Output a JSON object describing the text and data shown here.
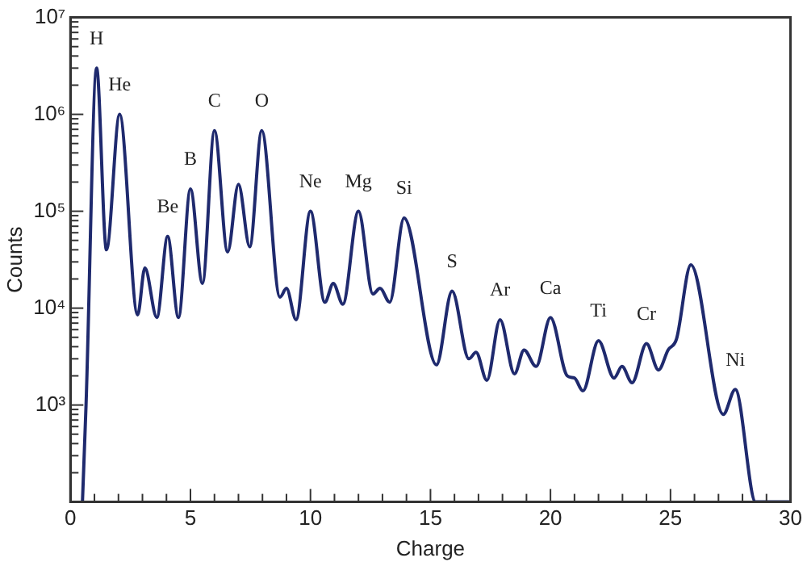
{
  "chart_data": {
    "type": "line",
    "xlabel": "Charge",
    "ylabel": "Counts",
    "log": "y",
    "grid": false,
    "legend": false,
    "marker": "none",
    "line_style": "solid",
    "xlim": [
      0,
      30
    ],
    "xticks": [
      0,
      {
        "value": 1,
        "label": null
      },
      {
        "value": 2,
        "label": null
      },
      {
        "value": 3,
        "label": null
      },
      {
        "value": 4,
        "label": null
      },
      5,
      {
        "value": 6,
        "label": null
      },
      {
        "value": 7,
        "label": null
      },
      {
        "value": 8,
        "label": null
      },
      {
        "value": 9,
        "label": null
      },
      10,
      {
        "value": 11,
        "label": null
      },
      {
        "value": 12,
        "label": null
      },
      {
        "value": 13,
        "label": null
      },
      {
        "value": 14,
        "label": null
      },
      15,
      {
        "value": 16,
        "label": null
      },
      {
        "value": 17,
        "label": null
      },
      {
        "value": 18,
        "label": null
      },
      {
        "value": 19,
        "label": null
      },
      20,
      {
        "value": 21,
        "label": null
      },
      {
        "value": 22,
        "label": null
      },
      {
        "value": 23,
        "label": null
      },
      {
        "value": 24,
        "label": null
      },
      25,
      {
        "value": 26,
        "label": null
      },
      {
        "value": 27,
        "label": null
      },
      {
        "value": 28,
        "label": null
      },
      {
        "value": 29,
        "label": null
      },
      30
    ],
    "ylim": [
      100,
      10000000
    ],
    "yticks": [
      {
        "value": 200,
        "label": null
      },
      {
        "value": 300,
        "label": null
      },
      {
        "value": 400,
        "label": null
      },
      {
        "value": 500,
        "label": null
      },
      {
        "value": 600,
        "label": null
      },
      {
        "value": 700,
        "label": null
      },
      {
        "value": 800,
        "label": null
      },
      {
        "value": 900,
        "label": null
      },
      {
        "value": 1000,
        "label": "10³"
      },
      {
        "value": 2000,
        "label": null
      },
      {
        "value": 3000,
        "label": null
      },
      {
        "value": 4000,
        "label": null
      },
      {
        "value": 5000,
        "label": null
      },
      {
        "value": 6000,
        "label": null
      },
      {
        "value": 7000,
        "label": null
      },
      {
        "value": 8000,
        "label": null
      },
      {
        "value": 9000,
        "label": null
      },
      {
        "value": 10000,
        "label": "10⁴"
      },
      {
        "value": 20000,
        "label": null
      },
      {
        "value": 30000,
        "label": null
      },
      {
        "value": 40000,
        "label": null
      },
      {
        "value": 50000,
        "label": null
      },
      {
        "value": 60000,
        "label": null
      },
      {
        "value": 70000,
        "label": null
      },
      {
        "value": 80000,
        "label": null
      },
      {
        "value": 90000,
        "label": null
      },
      {
        "value": 100000,
        "label": "10⁵"
      },
      {
        "value": 200000,
        "label": null
      },
      {
        "value": 300000,
        "label": null
      },
      {
        "value": 400000,
        "label": null
      },
      {
        "value": 500000,
        "label": null
      },
      {
        "value": 600000,
        "label": null
      },
      {
        "value": 700000,
        "label": null
      },
      {
        "value": 800000,
        "label": null
      },
      {
        "value": 900000,
        "label": null
      },
      {
        "value": 1000000,
        "label": "10⁶"
      },
      {
        "value": 2000000,
        "label": null
      },
      {
        "value": 3000000,
        "label": null
      },
      {
        "value": 4000000,
        "label": null
      },
      {
        "value": 5000000,
        "label": null
      },
      {
        "value": 6000000,
        "label": null
      },
      {
        "value": 7000000,
        "label": null
      },
      {
        "value": 8000000,
        "label": null
      },
      {
        "value": 9000000,
        "label": null
      },
      {
        "value": 10000000,
        "label": "10⁷"
      }
    ],
    "series": [
      {
        "color": "#1f2a6e",
        "x": [
          0.5,
          0.65,
          1.09,
          1.5,
          2.05,
          2.8,
          3.1,
          3.6,
          4.05,
          4.5,
          5.0,
          5.5,
          6.0,
          6.55,
          7.0,
          7.47,
          7.97,
          8.73,
          9.0,
          9.4,
          10.0,
          10.6,
          10.95,
          11.35,
          12.0,
          12.6,
          12.9,
          13.3,
          13.9,
          15.25,
          15.9,
          16.6,
          16.9,
          17.35,
          17.9,
          18.5,
          18.9,
          19.4,
          20.0,
          20.7,
          21.0,
          21.35,
          22.0,
          22.65,
          22.98,
          23.4,
          24.0,
          24.5,
          24.9,
          25.25,
          25.85,
          27.2,
          27.7,
          28.55,
          30
        ],
        "values": [
          100,
          1000,
          3000000,
          40000,
          1000000,
          8500,
          26000,
          8000,
          55000,
          8000,
          170000,
          18000,
          680000,
          38000,
          190000,
          43000,
          680000,
          13000,
          16000,
          7600,
          100000,
          11500,
          18000,
          11000,
          100000,
          14000,
          16000,
          11500,
          85000,
          2600,
          15000,
          3000,
          3500,
          1800,
          7600,
          2100,
          3700,
          2500,
          8000,
          2000,
          1900,
          1400,
          4600,
          1900,
          2500,
          1700,
          4300,
          2300,
          3700,
          4800,
          28000,
          800,
          1450,
          100,
          100
        ]
      }
    ],
    "annotations": [
      {
        "text": "H",
        "x": 1.09,
        "y": 3000000
      },
      {
        "text": "He",
        "x": 2.05,
        "y": 1000000
      },
      {
        "text": "Be",
        "x": 4.05,
        "y": 55000
      },
      {
        "text": "B",
        "x": 5.0,
        "y": 170000
      },
      {
        "text": "C",
        "x": 6.0,
        "y": 680000
      },
      {
        "text": "O",
        "x": 7.97,
        "y": 680000
      },
      {
        "text": "Ne",
        "x": 10.0,
        "y": 100000
      },
      {
        "text": "Mg",
        "x": 12.0,
        "y": 100000
      },
      {
        "text": "Si",
        "x": 13.9,
        "y": 85000
      },
      {
        "text": "S",
        "x": 15.9,
        "y": 15000
      },
      {
        "text": "Ar",
        "x": 17.9,
        "y": 7600
      },
      {
        "text": "Ca",
        "x": 20.0,
        "y": 8000
      },
      {
        "text": "Ti",
        "x": 22.0,
        "y": 4600
      },
      {
        "text": "Cr",
        "x": 24.0,
        "y": 4300
      },
      {
        "text": "Ni",
        "x": 27.7,
        "y": 1450
      }
    ]
  }
}
